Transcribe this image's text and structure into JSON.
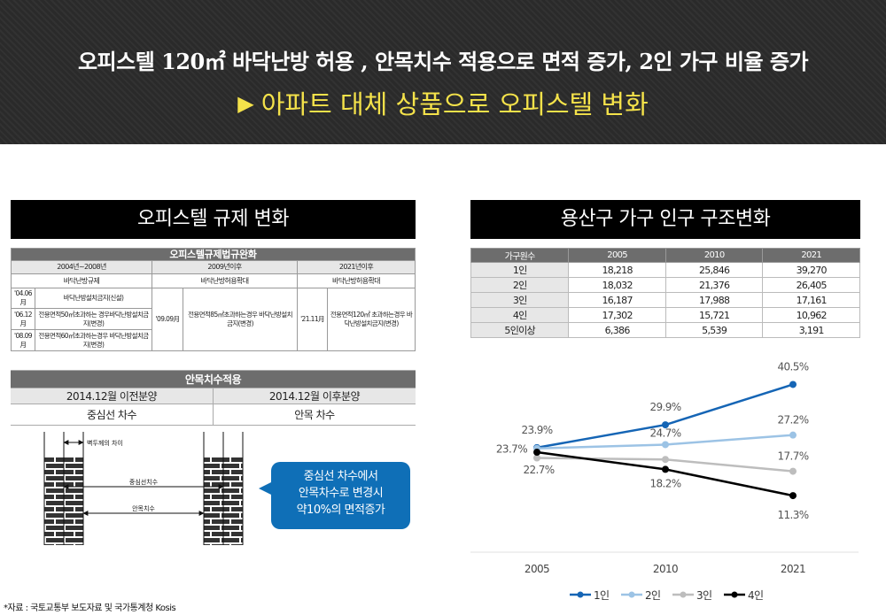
{
  "banner": {
    "line1": "오피스텔 120㎡ 바닥난방 허용 , 안목치수 적용으로 면적 증가, 2인 가구 비율 증가",
    "line2_arrow": "▶",
    "line2": "아파트 대체 상품으로 오피스텔 변화"
  },
  "left_section": {
    "title": "오피스텔 규제 변화",
    "regulation_table": {
      "header": "오피스텔규제법규완화",
      "periods": [
        "2004년~2008년",
        "2009년이후",
        "2021년이후"
      ],
      "period_notes": [
        "바닥난방규제",
        "바닥난방허용확대",
        "바닥난방허용확대"
      ],
      "rows_2004": [
        {
          "date": "'04.06月",
          "text": "바닥난방설치금지(신설)"
        },
        {
          "date": "'06.12月",
          "text": "전용면적50㎡초과하는 경우바닥난방설치금지(변경)"
        },
        {
          "date": "'08.09月",
          "text": "전용면적60㎡초과하는경우 바닥난방설치금지(변경)"
        }
      ],
      "row_2009": {
        "date": "'09.09月",
        "text": "전용면적85㎡초과하는경우 바닥난방설치금지(변경)"
      },
      "row_2021": {
        "date": "'21.11月",
        "text": "전용면적120㎡ 초과하는경우 바닥난방설치금지(변경)"
      }
    },
    "measure_table": {
      "header": "안목치수적용",
      "cols": [
        "2014.12월 이전분양",
        "2014.12월 이후분양"
      ],
      "values": [
        "중심선 차수",
        "안목 차수"
      ]
    },
    "diagram": {
      "label_thickness": "벽두께의 차이",
      "label_center": "중심선치수",
      "label_inner": "안목치수"
    },
    "callout": {
      "line1": "중심선 차수에서",
      "line2": "안목차수로 변경시",
      "line3": "약10%의 면적증가"
    },
    "source": "*자료 : 국토교통부 보도자료 및 국가통계청 Kosis"
  },
  "right_section": {
    "title": "용산구 가구 인구 구조변화",
    "table": {
      "headers": [
        "가구원수",
        "2005",
        "2010",
        "2021"
      ],
      "rows": [
        [
          "1인",
          "18,218",
          "25,846",
          "39,270"
        ],
        [
          "2인",
          "18,032",
          "21,376",
          "26,405"
        ],
        [
          "3인",
          "16,187",
          "17,988",
          "17,161"
        ],
        [
          "4인",
          "17,302",
          "15,721",
          "10,962"
        ],
        [
          "5인이상",
          "6,386",
          "5,539",
          "3,191"
        ]
      ]
    }
  },
  "colors": {
    "one": "#1565b5",
    "two": "#9cc3e5",
    "three": "#bdbdbd",
    "four": "#000000",
    "callout": "#0f6fb7",
    "banner_yellow": "#f4e24a"
  },
  "chart_data": {
    "type": "line",
    "categories": [
      "2005",
      "2010",
      "2021"
    ],
    "series": [
      {
        "name": "1인",
        "values": [
          23.9,
          29.9,
          40.5
        ],
        "labels": [
          "23.9%",
          "29.9%",
          "40.5%"
        ]
      },
      {
        "name": "2인",
        "values": [
          23.7,
          24.7,
          27.2
        ],
        "labels": [
          "",
          "24.7%",
          "27.2%"
        ]
      },
      {
        "name": "3인",
        "values": [
          21.2,
          20.8,
          17.7
        ],
        "labels": [
          "",
          "",
          "17.7%"
        ]
      },
      {
        "name": "4인",
        "values": [
          22.7,
          18.2,
          11.3
        ],
        "labels": [
          "22.7%",
          "18.2%",
          "11.3%"
        ]
      }
    ],
    "extra_labels": [
      "23.7%"
    ],
    "ylim": [
      9,
      42
    ],
    "legend": "bottom",
    "grid": false
  }
}
